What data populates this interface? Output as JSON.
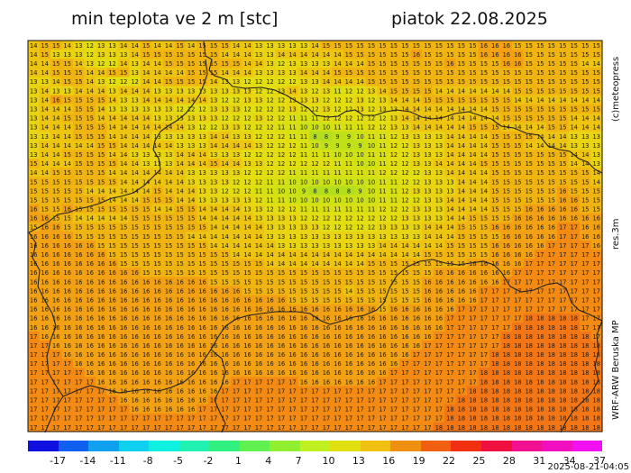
{
  "header": {
    "title_left": "min teplota ve 2 m [stc]",
    "title_right": "piatok 22.08.2025"
  },
  "side_labels": {
    "top": "(c)meteopress",
    "middle": "res.3m",
    "bottom": "WRF-ARW Beruska MP"
  },
  "timestamp": "2025-08-21-04:05",
  "colorbar": {
    "ticks": [
      "-17",
      "-14",
      "-11",
      "-8",
      "-5",
      "-2",
      "1",
      "4",
      "7",
      "10",
      "13",
      "16",
      "19",
      "22",
      "25",
      "28",
      "31",
      "34",
      "37"
    ],
    "colors": [
      "#1010e0",
      "#1060f0",
      "#10a0f0",
      "#10d0f0",
      "#10f0e0",
      "#20f0b0",
      "#30f080",
      "#60f050",
      "#90f030",
      "#c0f020",
      "#e0e010",
      "#f0c010",
      "#f09010",
      "#f06010",
      "#f03010",
      "#f01040",
      "#f01090",
      "#f010c0",
      "#f010f0"
    ]
  },
  "map": {
    "value_range": [
      8,
      18
    ],
    "rows": [
      "14 15 15 14 13 12 13 13 14 14 15 14 14 15 14 15 15 15 14 14 13 13 13 13 13 14 15 15 15 15 15 15 15 15 15 15 15 15 15 15 16 16 16 15 15 15 15 15 15 15 15",
      "14 15 13 13 13 12 13 13 13 14 15 15 15 15 15 15 15 14 14 14 13 13 14 14 14 14 14 14 15 15 15 15 15 15 16 15 15 15 15 15 16 16 16 16 15 15 15 15 15 15 15",
      "14 14 15 15 14 13 12 12 14 13 14 14 15 15 15 15 15 15 15 14 14 13 12 13 13 13 13 14 14 14 15 15 15 15 15 15 15 16 15 15 15 15 16 16 15 15 15 15 15 14 14",
      "14 14 15 15 15 14 14 15 15 13 14 14 14 14 15 15 15 14 14 14 13 13 13 13 14 14 14 15 15 15 15 15 15 15 15 15 15 15 15 15 15 15 15 15 15 15 15 15 15 15 15",
      "13 13 14 15 15 14 13 12 12 12 14 14 15 15 15 15 14 13 13 12 12 12 12 12 13 13 14 14 14 14 15 15 15 15 15 15 15 15 15 15 15 15 15 15 15 15 15 15 15 15 15",
      "13 14 13 13 14 14 14 13 14 14 14 13 13 13 13 13 13 13 13 13 12 12 13 14 13 12 13 11 12 12 13 14 15 15 15 15 14 14 14 14 14 14 14 15 15 15 15 15 15 15 15",
      "13 14 16 15 15 15 15 14 13 13 14 14 14 14 14 14 13 12 12 13 13 12 12 13 13 13 12 12 12 13 12 13 14 14 14 15 15 15 15 15 15 15 15 14 14 14 14 14 14 14 14",
      "13 14 14 14 15 15 14 13 13 13 13 13 13 12 12 12 13 13 13 12 12 12 12 13 12 12 13 12 12 13 12 13 13 14 14 14 14 14 14 14 14 15 15 15 15 15 15 15 15 15 15",
      "13 14 14 15 15 15 14 14 14 14 14 13 13 13 13 13 13 12 12 12 13 12 12 11 11 11 12 12 12 12 12 12 13 14 14 14 14 14 14 14 14 14 15 15 15 15 15 15 14 14 14",
      "13 14 14 14 15 15 15 14 14 14 14 14 14 14 13 12 12 13 13 12 12 12 11 11 10 10 10 11 11 11 12 12 13 13 14 14 14 14 14 15 15 15 14 14 14 14 15 15 14 14 14",
      "13 13 14 14 15 15 15 14 14 14 14 13 13 13 13 13 14 14 13 13 12 12 12 11 11 8 8 9 9 10 11 11 12 13 13 13 13 14 14 14 14 15 15 15 15 14 14 14 13 13 13",
      "13 14 14 14 14 14 15 15 14 14 14 14 14 13 13 13 14 14 14 14 13 12 12 12 11 10 9 9 9 9 10 11 12 12 13 13 13 14 14 14 14 15 15 15 14 14 14 14 13 13 13",
      "13 14 14 15 15 15 15 14 14 13 13 13 13 14 14 14 13 13 13 12 12 12 12 12 11 11 11 10 10 10 11 11 12 12 13 13 13 14 14 14 14 15 15 15 15 15 15 15 14 14 13",
      "15 14 14 14 15 15 15 15 14 14 13 13 13 14 14 14 15 14 14 13 13 12 12 12 12 12 12 11 11 10 10 11 12 12 13 13 14 14 14 14 15 15 15 15 15 15 15 15 14 14 13",
      "14 14 15 15 15 15 15 14 14 14 14 14 14 14 13 13 13 13 13 12 12 12 12 11 11 11 11 11 11 11 11 12 12 12 12 13 13 14 14 14 14 15 15 15 15 15 15 15 15 15 14",
      "15 15 15 15 15 15 15 15 14 14 14 14 14 14 13 13 13 13 12 12 12 11 11 10 10 10 10 10 10 10 10 11 11 12 12 13 13 13 14 14 14 15 15 15 15 15 15 15 15 15 14",
      "15 15 15 15 15 14 14 14 14 14 14 15 14 14 14 13 13 12 12 12 11 11 10 10 9 8 8 8 8 9 10 11 11 12 13 13 13 13 14 14 14 15 15 15 15 15 15 16 15 15 15",
      "15 15 15 15 15 15 15 14 14 14 15 15 15 14 14 13 13 13 13 13 12 11 11 10 10 10 10 10 10 10 10 11 11 12 12 13 13 14 14 14 14 15 15 15 15 15 15 16 16 15 15",
      "16 15 15 16 15 15 15 15 15 15 15 14 14 15 15 14 14 14 14 13 13 12 12 12 11 11 11 11 11 11 11 12 12 12 13 13 13 14 14 14 14 15 15 15 16 16 16 16 16 15 15",
      "16 16 15 15 14 14 14 14 14 15 15 15 15 15 15 14 14 14 14 14 13 13 13 13 12 12 12 12 12 12 12 12 12 13 13 13 13 14 14 15 15 15 15 16 16 16 16 16 16 16 16",
      "15 16 16 15 15 15 15 15 15 15 15 15 15 15 15 15 14 14 14 14 14 13 13 13 13 13 12 12 12 12 12 13 13 13 13 14 14 14 15 15 15 16 16 16 16 16 16 17 17 16 16",
      "16 16 16 16 15 15 15 15 15 15 15 15 15 15 14 14 14 14 14 14 14 13 13 13 13 13 13 13 13 13 13 13 13 13 13 14 14 14 15 15 15 15 16 16 16 16 16 17 17 16 16",
      "16 16 16 16 16 16 15 15 15 15 15 15 15 15 15 15 14 14 14 14 14 14 13 13 13 13 13 13 13 13 13 14 14 14 14 14 14 15 15 15 15 16 16 16 16 16 17 17 17 17 16",
      "16 16 16 16 16 16 16 15 15 15 15 15 15 15 15 15 15 15 14 14 14 14 14 14 14 14 14 14 14 14 14 14 14 14 14 15 15 15 15 15 15 16 16 16 16 17 17 17 17 17 17",
      "16 16 16 16 16 16 16 16 15 15 15 15 15 15 15 15 15 15 15 15 15 14 14 14 14 14 14 14 14 14 15 15 15 15 15 15 15 15 15 16 16 16 16 16 17 17 17 17 17 17 17",
      "16 16 16 16 16 16 16 16 16 16 15 15 15 15 15 15 15 15 15 15 15 15 15 15 15 15 15 15 15 15 15 15 15 15 15 15 16 16 16 16 16 16 16 17 17 17 17 17 17 17 17",
      "16 16 16 16 16 16 16 16 16 16 16 16 16 16 16 16 15 15 15 15 15 15 15 15 15 15 15 15 15 15 15 15 15 15 15 16 16 16 16 16 16 16 17 17 17 17 17 17 17 17 17",
      "16 16 16 16 16 16 16 16 16 16 16 16 16 16 16 16 16 16 16 15 15 15 15 15 15 15 15 15 14 15 15 15 15 15 15 16 16 16 16 16 17 17 17 17 17 17 17 17 17 17 17",
      "16 16 16 16 16 16 16 16 16 16 16 16 16 16 16 16 16 16 16 16 16 16 16 15 15 15 15 15 15 15 15 15 15 15 15 16 16 16 16 16 17 17 17 17 17 17 17 17 17 17 17",
      "16 16 16 16 16 16 16 16 16 16 16 16 16 16 16 16 16 16 16 16 16 16 16 16 16 16 16 16 16 16 16 15 16 16 16 16 16 16 17 17 17 17 17 17 17 17 17 17 17 17 17",
      "16 16 16 16 16 16 16 16 16 16 16 16 16 16 16 16 16 16 16 16 16 16 16 16 16 16 16 16 16 16 16 16 16 16 16 16 16 17 17 17 17 17 17 17 18 18 18 18 18 17 17",
      "16 16 16 16 16 16 16 16 16 16 16 16 16 16 16 16 16 16 16 16 16 16 16 16 16 16 16 16 16 16 16 16 16 16 16 16 16 17 17 17 17 17 17 18 18 18 18 18 18 17 17",
      "17 16 16 16 16 16 16 16 16 16 16 16 16 16 16 16 16 16 16 16 16 16 16 16 16 16 16 16 16 16 16 16 16 16 16 16 17 17 17 17 17 17 18 18 18 18 18 18 18 18 17",
      "17 17 16 16 16 16 16 16 16 16 16 16 16 16 16 16 16 16 16 16 16 16 16 16 16 16 16 16 16 16 16 16 16 16 16 17 17 17 17 17 17 17 18 18 18 18 18 18 18 18 18",
      "17 17 17 16 16 16 16 16 16 16 16 16 16 16 16 16 16 16 16 16 16 16 16 16 16 16 16 16 16 16 16 16 16 16 17 17 17 17 17 17 17 18 18 18 18 18 18 18 18 18 18",
      "17 17 17 17 16 16 16 16 16 16 16 16 16 16 16 16 16 16 16 16 16 16 16 16 16 16 16 16 16 16 16 16 16 17 17 17 17 17 17 17 17 18 18 18 18 18 18 18 18 18 18",
      "17 17 17 17 17 16 16 16 16 16 16 16 16 16 16 16 16 16 16 16 16 16 16 16 16 16 16 16 16 16 16 16 17 17 17 17 17 17 17 17 18 18 18 18 18 18 18 18 18 18 18",
      "17 17 17 17 17 17 16 16 16 16 16 16 16 16 16 16 16 16 17 17 17 17 17 17 16 16 16 16 16 16 16 17 17 17 17 17 17 17 17 17 18 18 18 18 18 18 18 18 18 18 18",
      "17 17 17 17 17 17 17 16 16 16 16 16 16 16 16 16 16 17 17 17 17 17 17 17 17 17 17 17 17 17 17 17 17 17 17 17 17 17 17 18 18 18 18 18 18 18 18 18 18 18 18",
      "17 17 17 17 17 17 17 17 16 16 16 16 16 16 16 16 17 17 17 17 17 17 17 17 17 17 17 17 17 17 17 17 17 17 17 17 17 17 18 18 18 18 18 18 18 18 18 18 18 18 18",
      "17 17 17 17 17 17 17 17 17 16 16 16 16 16 16 17 17 17 17 17 17 17 17 17 17 17 17 17 17 17 17 17 17 17 17 17 17 18 18 18 18 18 18 18 18 18 18 18 18 18 18",
      "17 17 17 17 17 17 17 17 17 17 17 17 17 17 17 17 17 17 17 17 17 17 17 17 17 17 17 17 17 17 17 17 17 17 17 17 17 18 18 18 18 18 18 18 18 18 18 18 18 18 18",
      "17 17 17 17 17 17 17 17 17 17 17 17 17 17 17 17 17 17 17 17 17 17 17 17 17 17 17 17 17 17 17 17 17 17 17 17 18 18 18 18 18 18 18 18 18 18 18 18 18 18 18"
    ]
  }
}
